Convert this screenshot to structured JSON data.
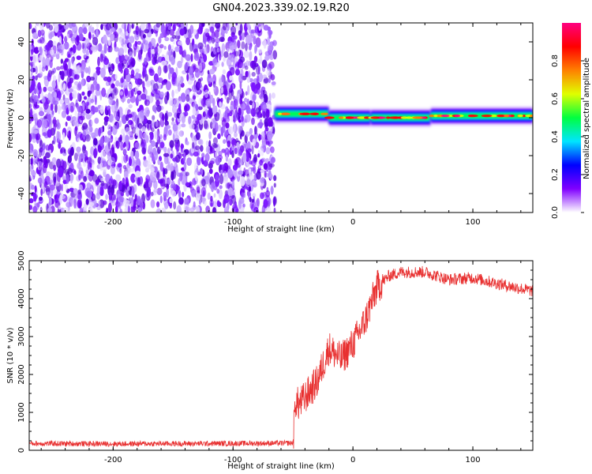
{
  "title": "GN04.2023.339.02.19.R20",
  "chart_data": [
    {
      "type": "heatmap",
      "xlabel": "Height of straight line (km)",
      "ylabel": "Frequency (Hz)",
      "xlim": [
        -270,
        150
      ],
      "ylim": [
        -50,
        50
      ],
      "xticks": [
        -200,
        -100,
        0,
        100
      ],
      "yticks": [
        -40,
        -20,
        0,
        20,
        40
      ],
      "noise_region_x": [
        -270,
        -65
      ],
      "signal_band": {
        "x_range": [
          -65,
          150
        ],
        "frequency_segments": [
          {
            "x": [
              -65,
              -20
            ],
            "hz": 2
          },
          {
            "x": [
              -20,
              15
            ],
            "hz": 0
          },
          {
            "x": [
              15,
              65
            ],
            "hz": 0
          },
          {
            "x": [
              65,
              150
            ],
            "hz": 1
          }
        ]
      },
      "colorbar": {
        "label": "Normalized spectral amplitude",
        "range": [
          0,
          1
        ],
        "ticks": [
          0.0,
          0.2,
          0.4,
          0.6,
          0.8
        ],
        "colors": [
          "#ffffff",
          "#8000ff",
          "#0000ff",
          "#00e5ff",
          "#00ff40",
          "#e0ff00",
          "#ff8000",
          "#ff0000",
          "#ff0080"
        ]
      }
    },
    {
      "type": "line",
      "xlabel": "Height of straight line (km)",
      "ylabel": "SNR (10 * v/v)",
      "xlim": [
        -270,
        150
      ],
      "ylim": [
        0,
        5000
      ],
      "xticks": [
        -200,
        -100,
        0,
        100
      ],
      "yticks": [
        0,
        1000,
        2000,
        3000,
        4000,
        5000
      ],
      "series": [
        {
          "color": "#e83030",
          "x": [
            -270,
            -200,
            -100,
            -50,
            -48,
            -45,
            -40,
            -30,
            -20,
            -10,
            0,
            10,
            20,
            30,
            40,
            60,
            80,
            100,
            120,
            150
          ],
          "y": [
            180,
            170,
            180,
            190,
            1300,
            1200,
            1400,
            1800,
            2700,
            2400,
            2800,
            3400,
            4300,
            4600,
            4700,
            4700,
            4500,
            4550,
            4400,
            4200
          ]
        }
      ]
    }
  ]
}
